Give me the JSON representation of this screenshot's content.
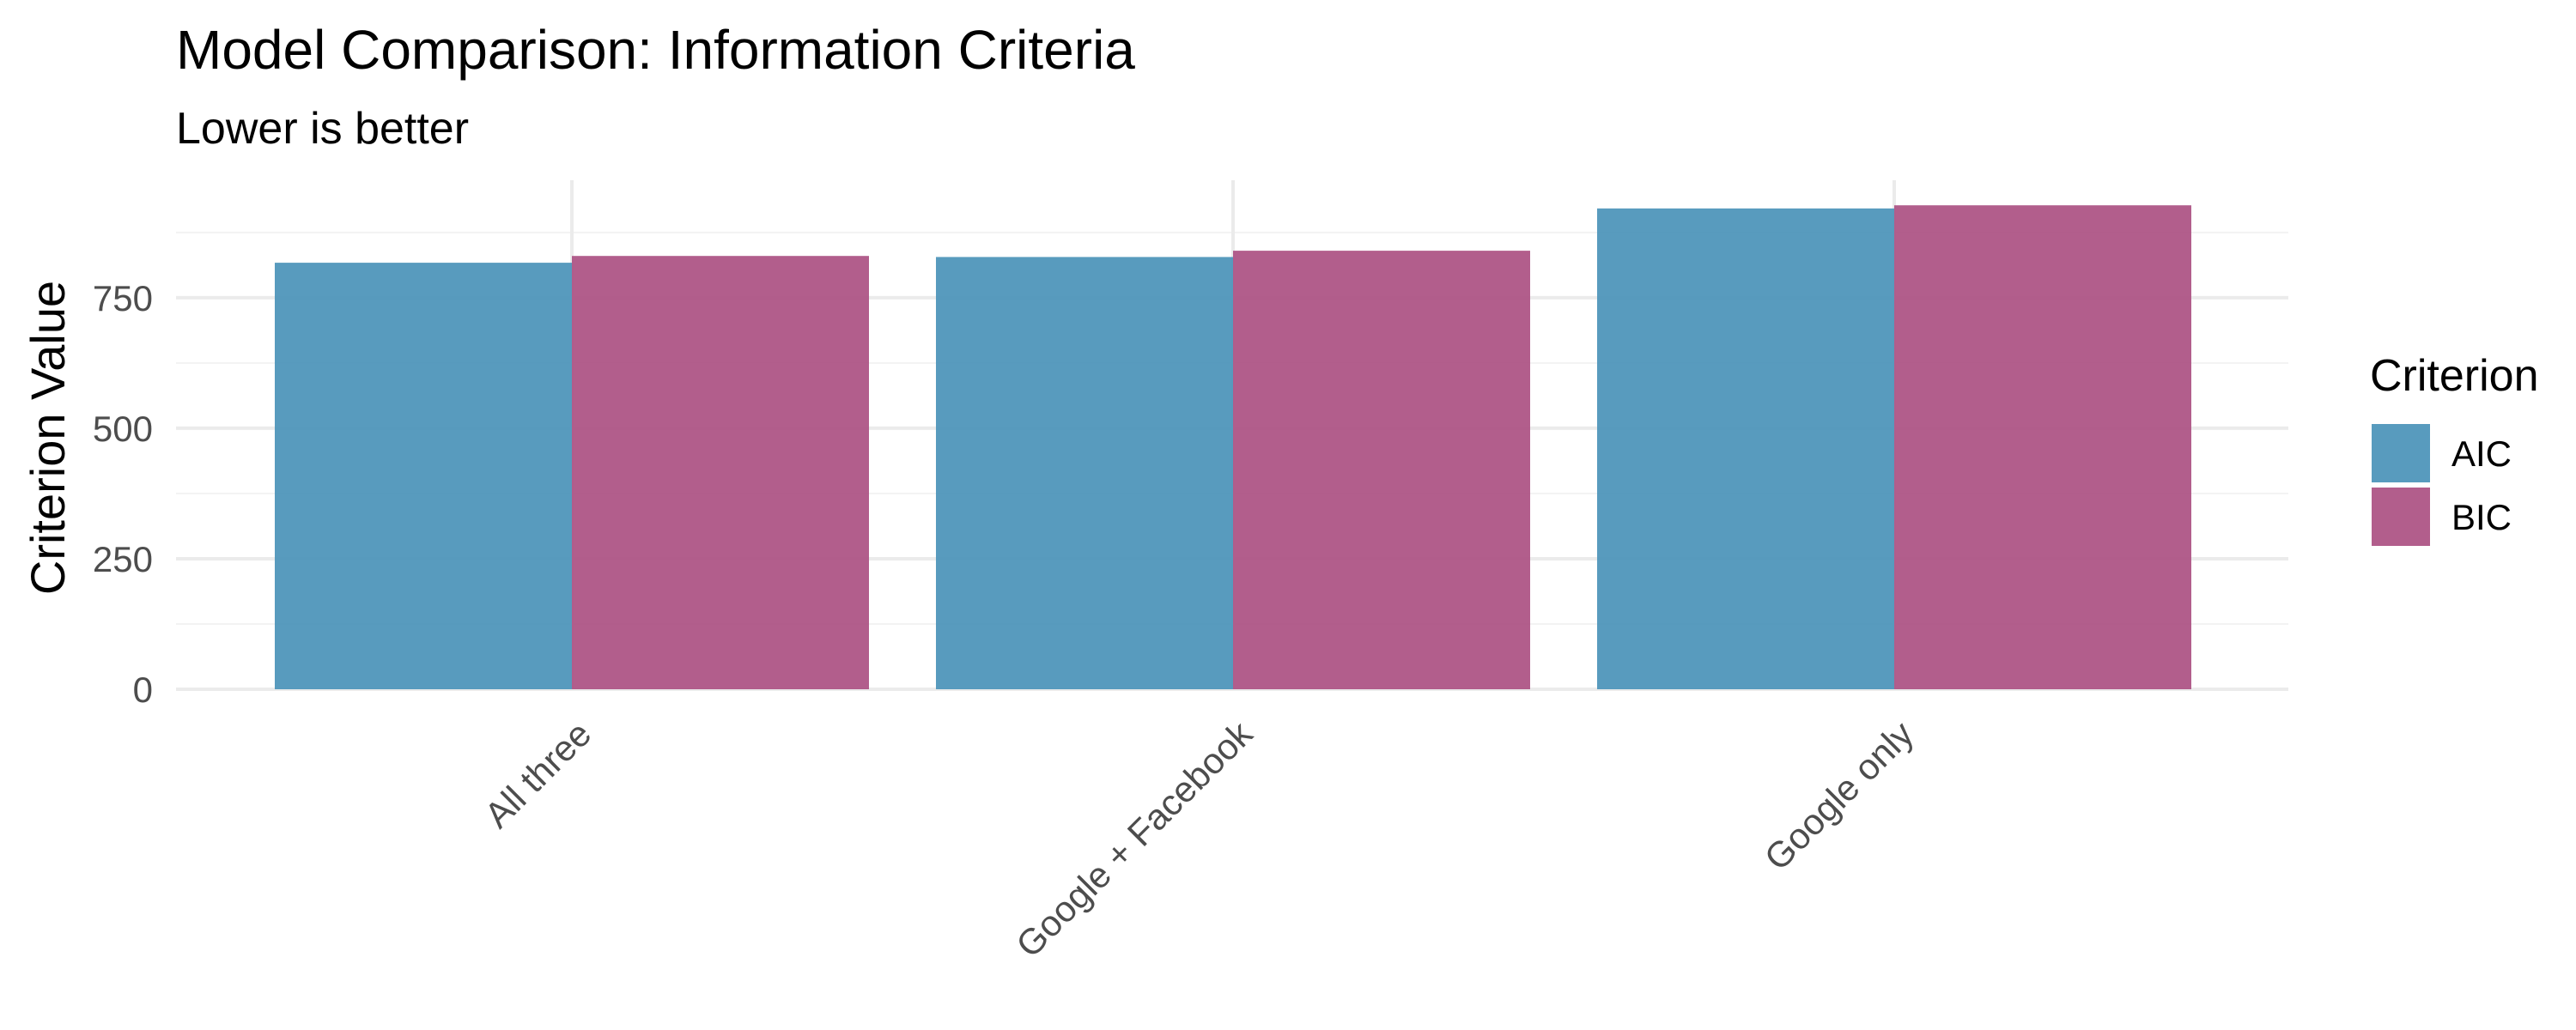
{
  "chart_data": {
    "type": "bar",
    "title": "Model Comparison: Information Criteria",
    "subtitle": "Lower is better",
    "xlabel": "",
    "ylabel": "Criterion Value",
    "categories": [
      "All three",
      "Google + Facebook",
      "Google only"
    ],
    "series": [
      {
        "name": "AIC",
        "values": [
          817,
          828,
          921
        ]
      },
      {
        "name": "BIC",
        "values": [
          830,
          840,
          927
        ]
      }
    ],
    "ylim": [
      0,
      975
    ],
    "yticks": [
      0,
      250,
      500,
      750
    ],
    "ytick_labels": [
      "0",
      "250",
      "500",
      "750"
    ],
    "legend": {
      "title": "Criterion",
      "placement": "right"
    },
    "colors": {
      "AIC": "#4a93b8",
      "BIC": "#ab5082"
    },
    "grid": true
  }
}
